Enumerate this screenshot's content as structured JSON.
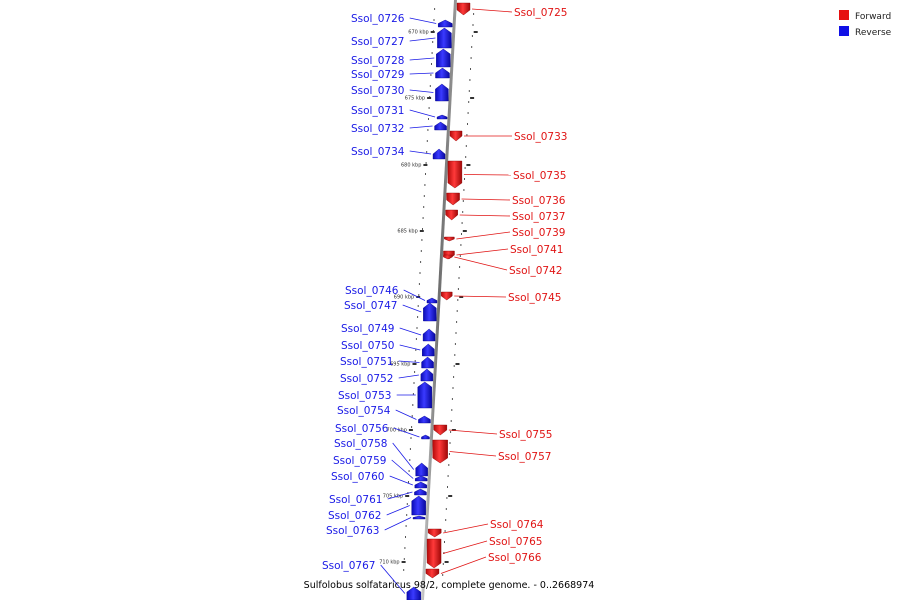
{
  "caption": "Sulfolobus solfataricus 98/2, complete genome. - 0..2668974",
  "legend": [
    {
      "label": "Forward",
      "color": "#e61010"
    },
    {
      "label": "Reverse",
      "color": "#1010e6"
    }
  ],
  "scale_ticks": [
    "670 kbp",
    "675 kbp",
    "680 kbp",
    "685 kbp",
    "690 kbp",
    "695 kbp",
    "700 kbp",
    "705 kbp",
    "710 kbp"
  ],
  "genes": [
    {
      "id": "Ssol_0725",
      "strand": "forward"
    },
    {
      "id": "Ssol_0726",
      "strand": "reverse"
    },
    {
      "id": "Ssol_0727",
      "strand": "reverse"
    },
    {
      "id": "Ssol_0728",
      "strand": "reverse"
    },
    {
      "id": "Ssol_0729",
      "strand": "reverse"
    },
    {
      "id": "Ssol_0730",
      "strand": "reverse"
    },
    {
      "id": "Ssol_0731",
      "strand": "reverse"
    },
    {
      "id": "Ssol_0732",
      "strand": "reverse"
    },
    {
      "id": "Ssol_0733",
      "strand": "forward"
    },
    {
      "id": "Ssol_0734",
      "strand": "reverse"
    },
    {
      "id": "Ssol_0735",
      "strand": "forward"
    },
    {
      "id": "Ssol_0736",
      "strand": "forward"
    },
    {
      "id": "Ssol_0737",
      "strand": "forward"
    },
    {
      "id": "Ssol_0739",
      "strand": "forward"
    },
    {
      "id": "Ssol_0741",
      "strand": "forward"
    },
    {
      "id": "Ssol_0742",
      "strand": "forward"
    },
    {
      "id": "Ssol_0745",
      "strand": "forward"
    },
    {
      "id": "Ssol_0746",
      "strand": "reverse"
    },
    {
      "id": "Ssol_0747",
      "strand": "reverse"
    },
    {
      "id": "Ssol_0749",
      "strand": "reverse"
    },
    {
      "id": "Ssol_0750",
      "strand": "reverse"
    },
    {
      "id": "Ssol_0751",
      "strand": "reverse"
    },
    {
      "id": "Ssol_0752",
      "strand": "reverse"
    },
    {
      "id": "Ssol_0753",
      "strand": "reverse"
    },
    {
      "id": "Ssol_0754",
      "strand": "reverse"
    },
    {
      "id": "Ssol_0755",
      "strand": "forward"
    },
    {
      "id": "Ssol_0756",
      "strand": "reverse"
    },
    {
      "id": "Ssol_0757",
      "strand": "forward"
    },
    {
      "id": "Ssol_0758",
      "strand": "reverse"
    },
    {
      "id": "Ssol_0759",
      "strand": "reverse"
    },
    {
      "id": "Ssol_0760",
      "strand": "reverse"
    },
    {
      "id": "Ssol_0761",
      "strand": "reverse"
    },
    {
      "id": "Ssol_0762",
      "strand": "reverse"
    },
    {
      "id": "Ssol_0763",
      "strand": "reverse"
    },
    {
      "id": "Ssol_0764",
      "strand": "forward"
    },
    {
      "id": "Ssol_0765",
      "strand": "forward"
    },
    {
      "id": "Ssol_0766",
      "strand": "forward"
    },
    {
      "id": "Ssol_0767",
      "strand": "reverse"
    }
  ]
}
